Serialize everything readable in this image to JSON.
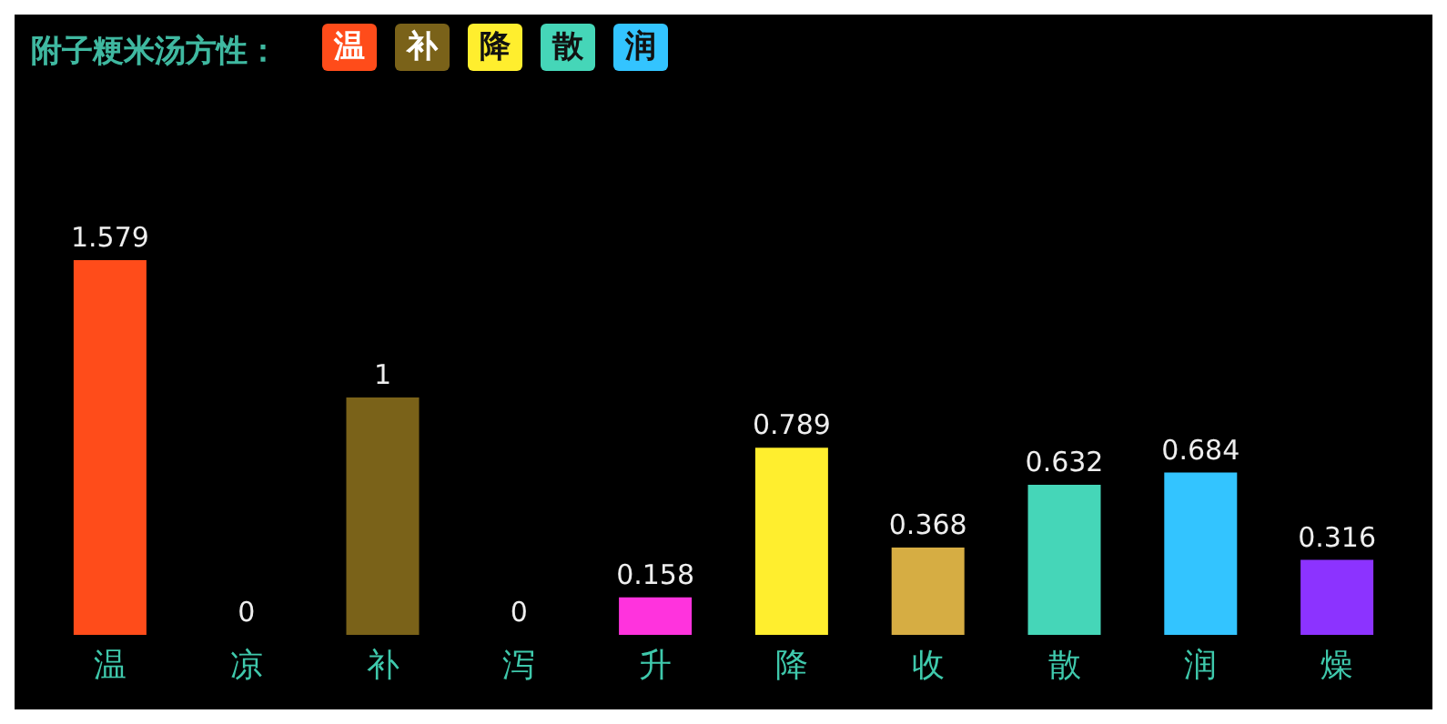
{
  "chart_data": {
    "type": "bar",
    "title": "附子粳米汤方性：",
    "categories": [
      "温",
      "凉",
      "补",
      "泻",
      "升",
      "降",
      "收",
      "散",
      "润",
      "燥"
    ],
    "values": [
      1.579,
      0,
      1,
      0,
      0.158,
      0.789,
      0.368,
      0.632,
      0.684,
      0.316
    ],
    "colors": [
      "#ff4c1a",
      "#ffffff",
      "#7a6219",
      "#ffffff",
      "#ff33dd",
      "#ffee2e",
      "#d6ad43",
      "#45d6b8",
      "#33c4ff",
      "#8c33ff"
    ],
    "data_labels": true,
    "annotations": [
      "温",
      "补",
      "降",
      "散",
      "润"
    ]
  }
}
